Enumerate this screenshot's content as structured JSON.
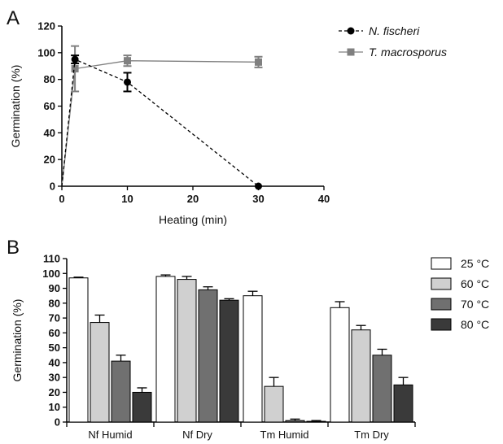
{
  "panels": {
    "A": {
      "letter": "A"
    },
    "B": {
      "letter": "B"
    }
  },
  "chart_data": [
    {
      "type": "line",
      "panel": "A",
      "title": "",
      "xlabel": "Heating (min)",
      "ylabel": "Germination (%)",
      "xlim": [
        0,
        40
      ],
      "ylim": [
        0,
        120
      ],
      "xticks": [
        "0",
        "10",
        "20",
        "30",
        "40"
      ],
      "yticks": [
        "0",
        "20",
        "40",
        "60",
        "80",
        "100",
        "120"
      ],
      "grid": false,
      "legend_position": "right",
      "series": [
        {
          "name": "N. fischeri",
          "color": "#000000",
          "marker": "circle",
          "line_style": "dashed",
          "x": [
            0,
            2,
            10,
            30
          ],
          "y": [
            0,
            95,
            78,
            0
          ],
          "error": [
            0,
            3,
            7,
            0
          ]
        },
        {
          "name": "T. macrosporus",
          "color": "#808080",
          "marker": "square",
          "line_style": "solid",
          "x": [
            0,
            2,
            10,
            30
          ],
          "y": [
            0,
            88,
            94,
            93
          ],
          "error": [
            0,
            17,
            4,
            4
          ]
        }
      ]
    },
    {
      "type": "bar",
      "panel": "B",
      "title": "",
      "xlabel": "",
      "ylabel": "Germination (%)",
      "ylim": [
        0,
        110
      ],
      "yticks": [
        "0",
        "10",
        "20",
        "30",
        "40",
        "50",
        "60",
        "70",
        "80",
        "90",
        "100",
        "110"
      ],
      "grid": false,
      "legend_position": "right",
      "categories": [
        "Nf Humid",
        "Nf Dry",
        "Tm Humid",
        "Tm Dry"
      ],
      "series": [
        {
          "name": "25 °C",
          "color": "#ffffff",
          "values": [
            97,
            98,
            85,
            77
          ],
          "error": [
            0.5,
            1,
            3,
            4
          ]
        },
        {
          "name": "60 °C",
          "color": "#d0d0d0",
          "values": [
            67,
            96,
            24,
            62
          ],
          "error": [
            5,
            2,
            6,
            3
          ]
        },
        {
          "name": "70 °C",
          "color": "#707070",
          "values": [
            41,
            89,
            1,
            45
          ],
          "error": [
            4,
            2,
            1,
            4
          ]
        },
        {
          "name": "80 °C",
          "color": "#3a3a3a",
          "values": [
            20,
            82,
            0.5,
            25
          ],
          "error": [
            3,
            1,
            0.5,
            5
          ]
        }
      ]
    }
  ]
}
